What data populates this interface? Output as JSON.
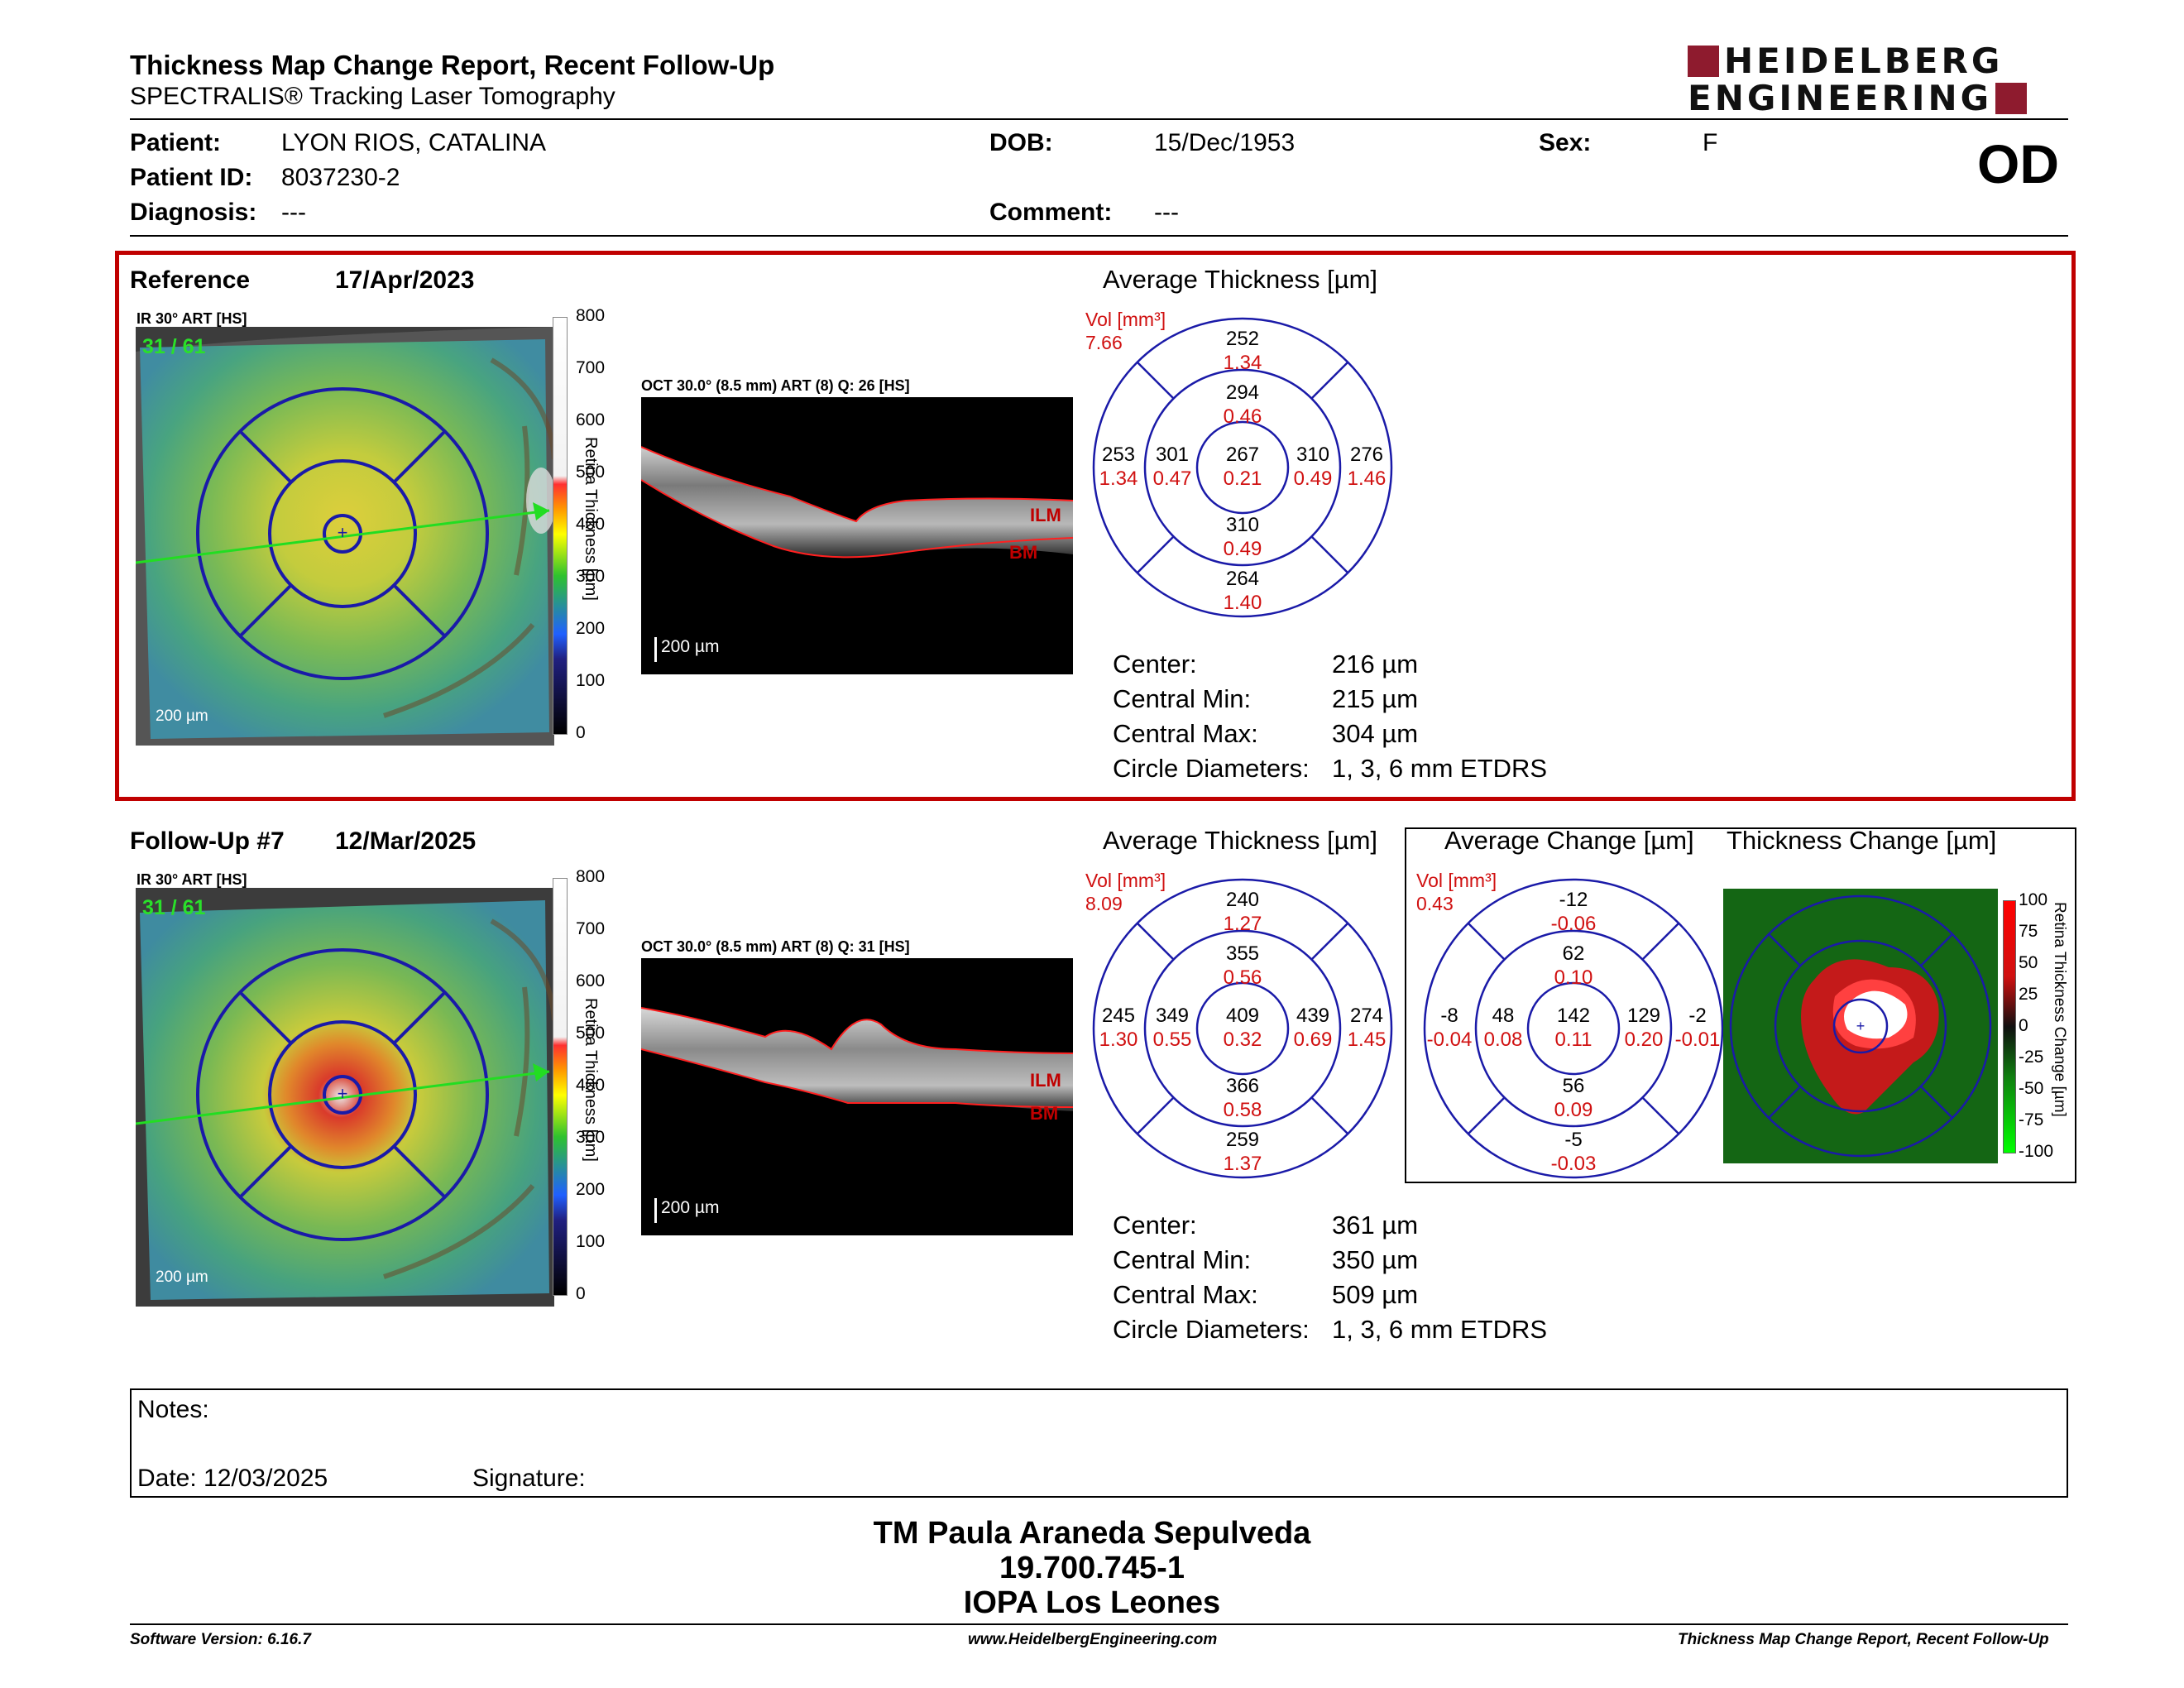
{
  "header": {
    "title": "Thickness Map Change Report, Recent Follow-Up",
    "subtitle": "SPECTRALIS® Tracking Laser Tomography",
    "logo_line1": "HEIDELBERG",
    "logo_line2": "ENGINEERING",
    "eye": "OD"
  },
  "patient": {
    "patient_label": "Patient:",
    "patient": "LYON RIOS, CATALINA",
    "id_label": "Patient ID:",
    "id": "8037230-2",
    "diagnosis_label": "Diagnosis:",
    "diagnosis": "---",
    "dob_label": "DOB:",
    "dob": "15/Dec/1953",
    "comment_label": "Comment:",
    "comment": "---",
    "sex_label": "Sex:",
    "sex": "F"
  },
  "reference": {
    "label": "Reference",
    "date": "17/Apr/2023",
    "map_header": "IR 30° ART [HS]",
    "frame": "31 / 61",
    "scale": "200 µm",
    "oct_header": "OCT 30.0° (8.5 mm) ART (8) Q: 26 [HS]",
    "oct_scale": "200 µm",
    "ilm": "ILM",
    "bm": "BM",
    "chart_title": "Average Thickness [µm]",
    "vol_label": "Vol [mm³]",
    "vol_value": "7.66",
    "etdrs": {
      "superior_outer": [
        "252",
        "1.34"
      ],
      "superior_inner": [
        "294",
        "0.46"
      ],
      "temporal_outer": [
        "253",
        "1.34"
      ],
      "temporal_inner": [
        "301",
        "0.47"
      ],
      "center": [
        "267",
        "0.21"
      ],
      "nasal_inner": [
        "310",
        "0.49"
      ],
      "nasal_outer": [
        "276",
        "1.46"
      ],
      "inferior_inner": [
        "310",
        "0.49"
      ],
      "inferior_outer": [
        "264",
        "1.40"
      ]
    },
    "stats": {
      "center_label": "Center:",
      "center": "216 µm",
      "min_label": "Central Min:",
      "min": "215 µm",
      "max_label": "Central Max:",
      "max": "304 µm",
      "circle_label": "Circle Diameters:",
      "circle": "1, 3, 6 mm ETDRS"
    }
  },
  "followup": {
    "label": "Follow-Up #7",
    "date": "12/Mar/2025",
    "map_header": "IR 30° ART [HS]",
    "frame": "31 / 61",
    "scale": "200 µm",
    "oct_header": "OCT 30.0° (8.5 mm) ART (8) Q: 31 [HS]",
    "oct_scale": "200 µm",
    "ilm": "ILM",
    "bm": "BM",
    "chart_title": "Average Thickness [µm]",
    "vol_label": "Vol [mm³]",
    "vol_value": "8.09",
    "etdrs": {
      "superior_outer": [
        "240",
        "1.27"
      ],
      "superior_inner": [
        "355",
        "0.56"
      ],
      "temporal_outer": [
        "245",
        "1.30"
      ],
      "temporal_inner": [
        "349",
        "0.55"
      ],
      "center": [
        "409",
        "0.32"
      ],
      "nasal_inner": [
        "439",
        "0.69"
      ],
      "nasal_outer": [
        "274",
        "1.45"
      ],
      "inferior_inner": [
        "366",
        "0.58"
      ],
      "inferior_outer": [
        "259",
        "1.37"
      ]
    },
    "stats": {
      "center_label": "Center:",
      "center": "361 µm",
      "min_label": "Central Min:",
      "min": "350 µm",
      "max_label": "Central Max:",
      "max": "509 µm",
      "circle_label": "Circle Diameters:",
      "circle": "1, 3, 6 mm ETDRS"
    }
  },
  "change": {
    "chart_title": "Average Change [µm]",
    "map_title": "Thickness Change [µm]",
    "vol_label": "Vol [mm³]",
    "vol_value": "0.43",
    "etdrs": {
      "superior_outer": [
        "-12",
        "-0.06"
      ],
      "superior_inner": [
        "62",
        "0.10"
      ],
      "temporal_outer": [
        "-8",
        "-0.04"
      ],
      "temporal_inner": [
        "48",
        "0.08"
      ],
      "center": [
        "142",
        "0.11"
      ],
      "nasal_inner": [
        "129",
        "0.20"
      ],
      "nasal_outer": [
        "-2",
        "-0.01"
      ],
      "inferior_inner": [
        "56",
        "0.09"
      ],
      "inferior_outer": [
        "-5",
        "-0.03"
      ]
    },
    "scale_ticks": [
      "100",
      "75",
      "50",
      "25",
      "0",
      "-25",
      "-50",
      "-75",
      "-100"
    ],
    "scale_label": "Retina Thickness Change [µm]"
  },
  "thickness_scale": {
    "ticks": [
      "800",
      "700",
      "600",
      "500",
      "400",
      "300",
      "200",
      "100",
      "0"
    ],
    "label": "Retina  Thickness [µm]"
  },
  "notes": {
    "notes_label": "Notes:",
    "date_label": "Date: 12/03/2025",
    "signature_label": "Signature:"
  },
  "signature": {
    "name": "TM Paula Araneda Sepulveda",
    "rut": "19.700.745-1",
    "clinic": "IOPA Los Leones"
  },
  "footer": {
    "version": "Software Version: 6.16.7",
    "url": "www.HeidelbergEngineering.com",
    "report": "Thickness Map Change Report, Recent Follow-Up"
  },
  "colors": {
    "accent_red": "#c00000",
    "brand_red": "#8e1b2e",
    "etdrs_blue": "#1a1aa8",
    "volume_red": "#d01010"
  }
}
